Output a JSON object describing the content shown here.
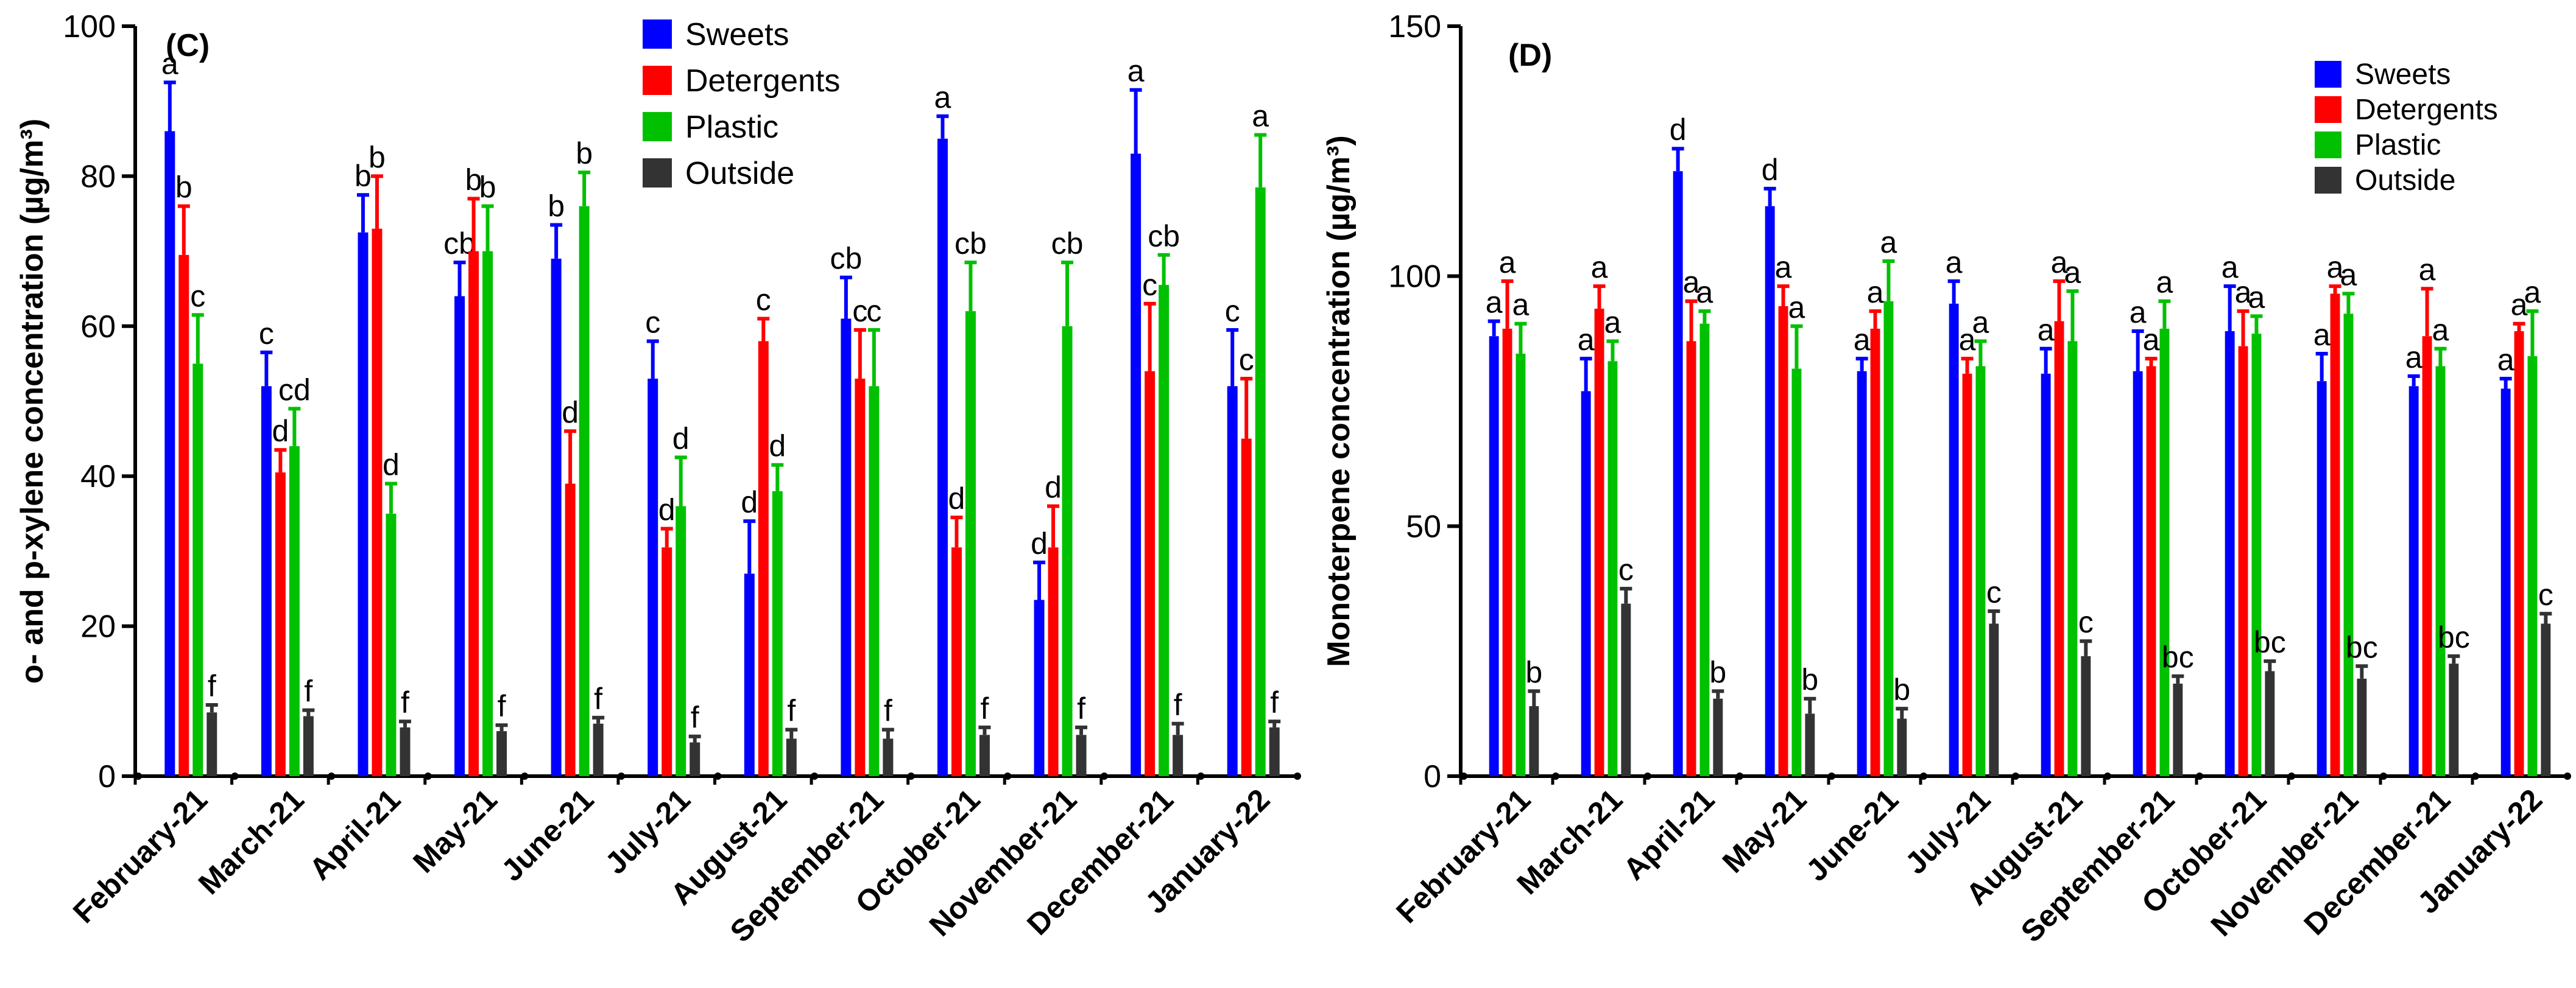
{
  "colors": {
    "Sweets": "#0000ff",
    "Detergents": "#ff0000",
    "Plastic": "#00c000",
    "Outside": "#333333"
  },
  "chart_data": [
    {
      "type": "bar",
      "panel_label": "(C)",
      "ylabel": "o- and p-xylene concentration (µg/m³)",
      "ylim": [
        0,
        100
      ],
      "yticks": [
        "0",
        "20",
        "40",
        "60",
        "80",
        "100"
      ],
      "legend_position": "top-center",
      "legend": [
        "Sweets",
        "Detergents",
        "Plastic",
        "Outside"
      ],
      "categories": [
        "February-21",
        "March-21",
        "April-21",
        "May-21",
        "June-21",
        "July-21",
        "August-21",
        "September-21",
        "October-21",
        "November-21",
        "December-21",
        "January-22"
      ],
      "series": [
        {
          "name": "Sweets",
          "values": [
            86,
            52,
            72.5,
            64,
            69,
            53,
            27,
            61,
            85,
            23.5,
            83,
            52
          ],
          "errors": [
            6.5,
            4.5,
            5,
            4.5,
            4.5,
            5,
            7,
            5.5,
            3,
            5,
            8.5,
            7.5
          ],
          "letters": [
            "a",
            "c",
            "b",
            "cb",
            "b",
            "c",
            "d",
            "cb",
            "a",
            "d",
            "a",
            "c"
          ]
        },
        {
          "name": "Detergents",
          "values": [
            69.5,
            40.5,
            73,
            70,
            39,
            30.5,
            58,
            53,
            30.5,
            30.5,
            54,
            45
          ],
          "errors": [
            6.5,
            3,
            7,
            7,
            7,
            2.5,
            3,
            6.5,
            4,
            5.5,
            9,
            8
          ],
          "letters": [
            "b",
            "d",
            "b",
            "b",
            "d",
            "d",
            "c",
            "c",
            "d",
            "d",
            "c",
            "c"
          ]
        },
        {
          "name": "Plastic",
          "values": [
            55,
            44,
            35,
            70,
            76,
            36,
            38,
            52,
            62,
            60,
            65.5,
            78.5
          ],
          "errors": [
            6.5,
            5,
            4,
            6,
            4.5,
            6.5,
            3.5,
            7.5,
            6.5,
            8.5,
            4,
            7
          ],
          "letters": [
            "c",
            "cd",
            "d",
            "b",
            "b",
            "d",
            "d",
            "c",
            "cb",
            "cb",
            "cb",
            "a"
          ]
        },
        {
          "name": "Outside",
          "values": [
            8.5,
            8,
            6.5,
            6,
            7,
            4.5,
            5,
            5,
            5.5,
            5.5,
            5.5,
            6.5
          ],
          "errors": [
            1,
            0.8,
            0.8,
            0.8,
            0.8,
            0.8,
            1.2,
            1.2,
            1,
            1,
            1.5,
            0.8
          ],
          "letters": [
            "f",
            "f",
            "f",
            "f",
            "f",
            "f",
            "f",
            "f",
            "f",
            "f",
            "f",
            "f"
          ]
        }
      ]
    },
    {
      "type": "bar",
      "panel_label": "(D)",
      "ylabel": "Monoterpene concentration (µg/m³)",
      "ylim": [
        0,
        150
      ],
      "yticks": [
        "0",
        "50",
        "100",
        "150"
      ],
      "legend_position": "top-right",
      "legend": [
        "Sweets",
        "Detergents",
        "Plastic",
        "Outside"
      ],
      "categories": [
        "February-21",
        "March-21",
        "April-21",
        "May-21",
        "June-21",
        "July-21",
        "August-21",
        "September-21",
        "October-21",
        "November-21",
        "December-21",
        "January-22"
      ],
      "series": [
        {
          "name": "Sweets",
          "values": [
            88,
            77,
            121,
            114,
            81,
            94.5,
            80.5,
            81,
            89,
            79,
            78,
            77.5
          ],
          "errors": [
            3,
            6.5,
            4.5,
            3.5,
            2.5,
            4.5,
            5,
            8,
            9,
            5.5,
            2,
            2
          ],
          "letters": [
            "a",
            "a",
            "d",
            "d",
            "a",
            "a",
            "a",
            "a",
            "a",
            "a",
            "a",
            "a"
          ]
        },
        {
          "name": "Detergents",
          "values": [
            89.5,
            93.5,
            87,
            94,
            89.5,
            80.5,
            91,
            82,
            86,
            96.5,
            88,
            89
          ],
          "errors": [
            9.5,
            4.5,
            8,
            4,
            3.5,
            3,
            8,
            1.5,
            7,
            1.5,
            9.5,
            1.5
          ],
          "letters": [
            "a",
            "a",
            "a",
            "a",
            "a",
            "a",
            "a",
            "a",
            "a",
            "a",
            "a",
            "a"
          ]
        },
        {
          "name": "Plastic",
          "values": [
            84.5,
            83,
            90.5,
            81.5,
            95,
            82,
            87,
            89.5,
            88.5,
            92.5,
            82,
            84
          ],
          "errors": [
            6,
            4,
            2.5,
            8.5,
            8,
            5,
            10,
            5.5,
            3.5,
            4,
            3.5,
            9
          ],
          "letters": [
            "a",
            "a",
            "a",
            "a",
            "a",
            "a",
            "a",
            "a",
            "a",
            "a",
            "a",
            "a"
          ]
        },
        {
          "name": "Outside",
          "values": [
            14,
            34.5,
            15.5,
            12.5,
            11.5,
            30.5,
            24,
            18.5,
            21,
            19.5,
            22.5,
            30.5
          ],
          "errors": [
            3,
            3,
            1.5,
            3,
            2,
            2.5,
            3,
            1.5,
            2,
            2.5,
            1.5,
            2
          ],
          "letters": [
            "b",
            "c",
            "b",
            "b",
            "b",
            "c",
            "c",
            "bc",
            "bc",
            "bc",
            "bc",
            "c"
          ]
        }
      ]
    }
  ]
}
